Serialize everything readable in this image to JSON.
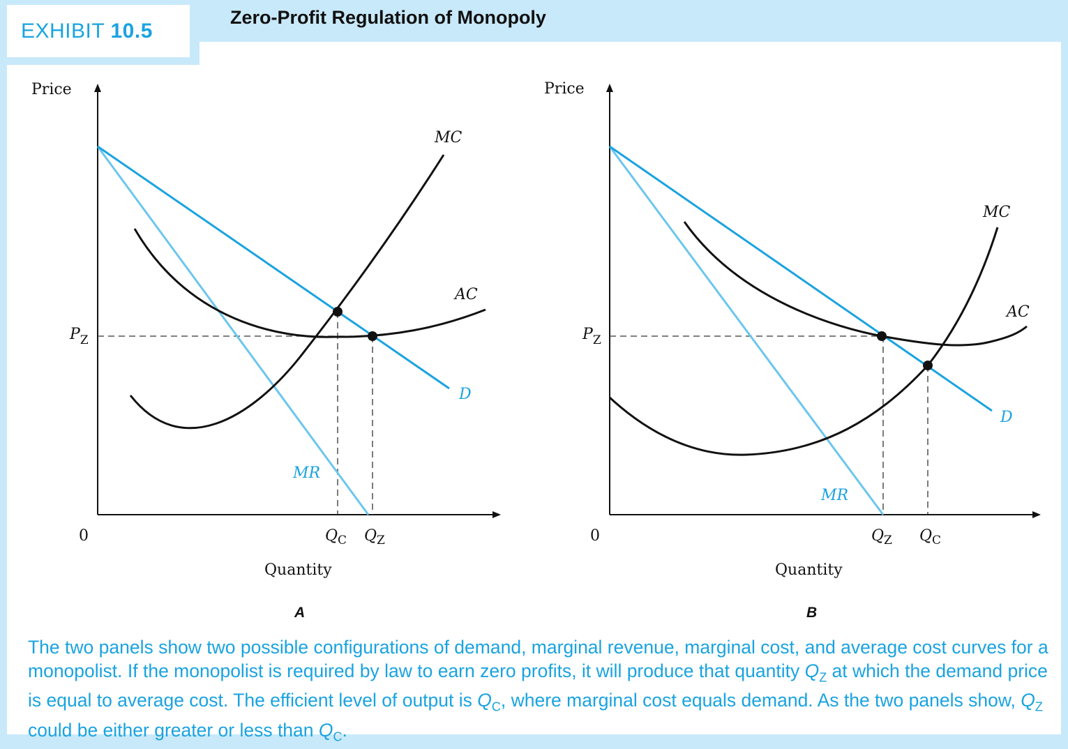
{
  "exhibit": {
    "word": "EXHIBIT",
    "number": "10.5"
  },
  "title": "Zero-Profit Regulation of Monopoly",
  "colors": {
    "demand": "#1aa3e0",
    "mr": "#6cc6ee",
    "cost": "#111111",
    "accent": "#1aa3e0"
  },
  "panel_a": {
    "letter": "A",
    "y_label": "Price",
    "x_label": "Quantity",
    "origin": "0",
    "pz": "P",
    "pz_sub": "Z",
    "curves": {
      "mc": "MC",
      "ac": "AC",
      "d": "D",
      "mr": "MR"
    },
    "q1": "Q",
    "q1_sub": "C",
    "q2": "Q",
    "q2_sub": "Z"
  },
  "panel_b": {
    "letter": "B",
    "y_label": "Price",
    "x_label": "Quantity",
    "origin": "0",
    "pz": "P",
    "pz_sub": "Z",
    "curves": {
      "mc": "MC",
      "ac": "AC",
      "d": "D",
      "mr": "MR"
    },
    "q1": "Q",
    "q1_sub": "Z",
    "q2": "Q",
    "q2_sub": "C"
  },
  "caption": {
    "part1": "The two panels show two possible configurations of demand, marginal revenue, marginal cost, and average cost curves for a monopolist. If the monopolist is required by law to earn zero profits, it will produce that quantity ",
    "qz": "Q",
    "qz_sub": "Z",
    "part2": " at which the demand price is equal to average cost. The efficient level of output is ",
    "qc": "Q",
    "qc_sub": "C",
    "part3": ", where marginal cost equals demand. As the two panels show, ",
    "qz2": "Q",
    "qz2_sub": "Z",
    "part4": " could be either greater or less than ",
    "qc2": "Q",
    "qc2_sub": "C",
    "part5": "."
  }
}
